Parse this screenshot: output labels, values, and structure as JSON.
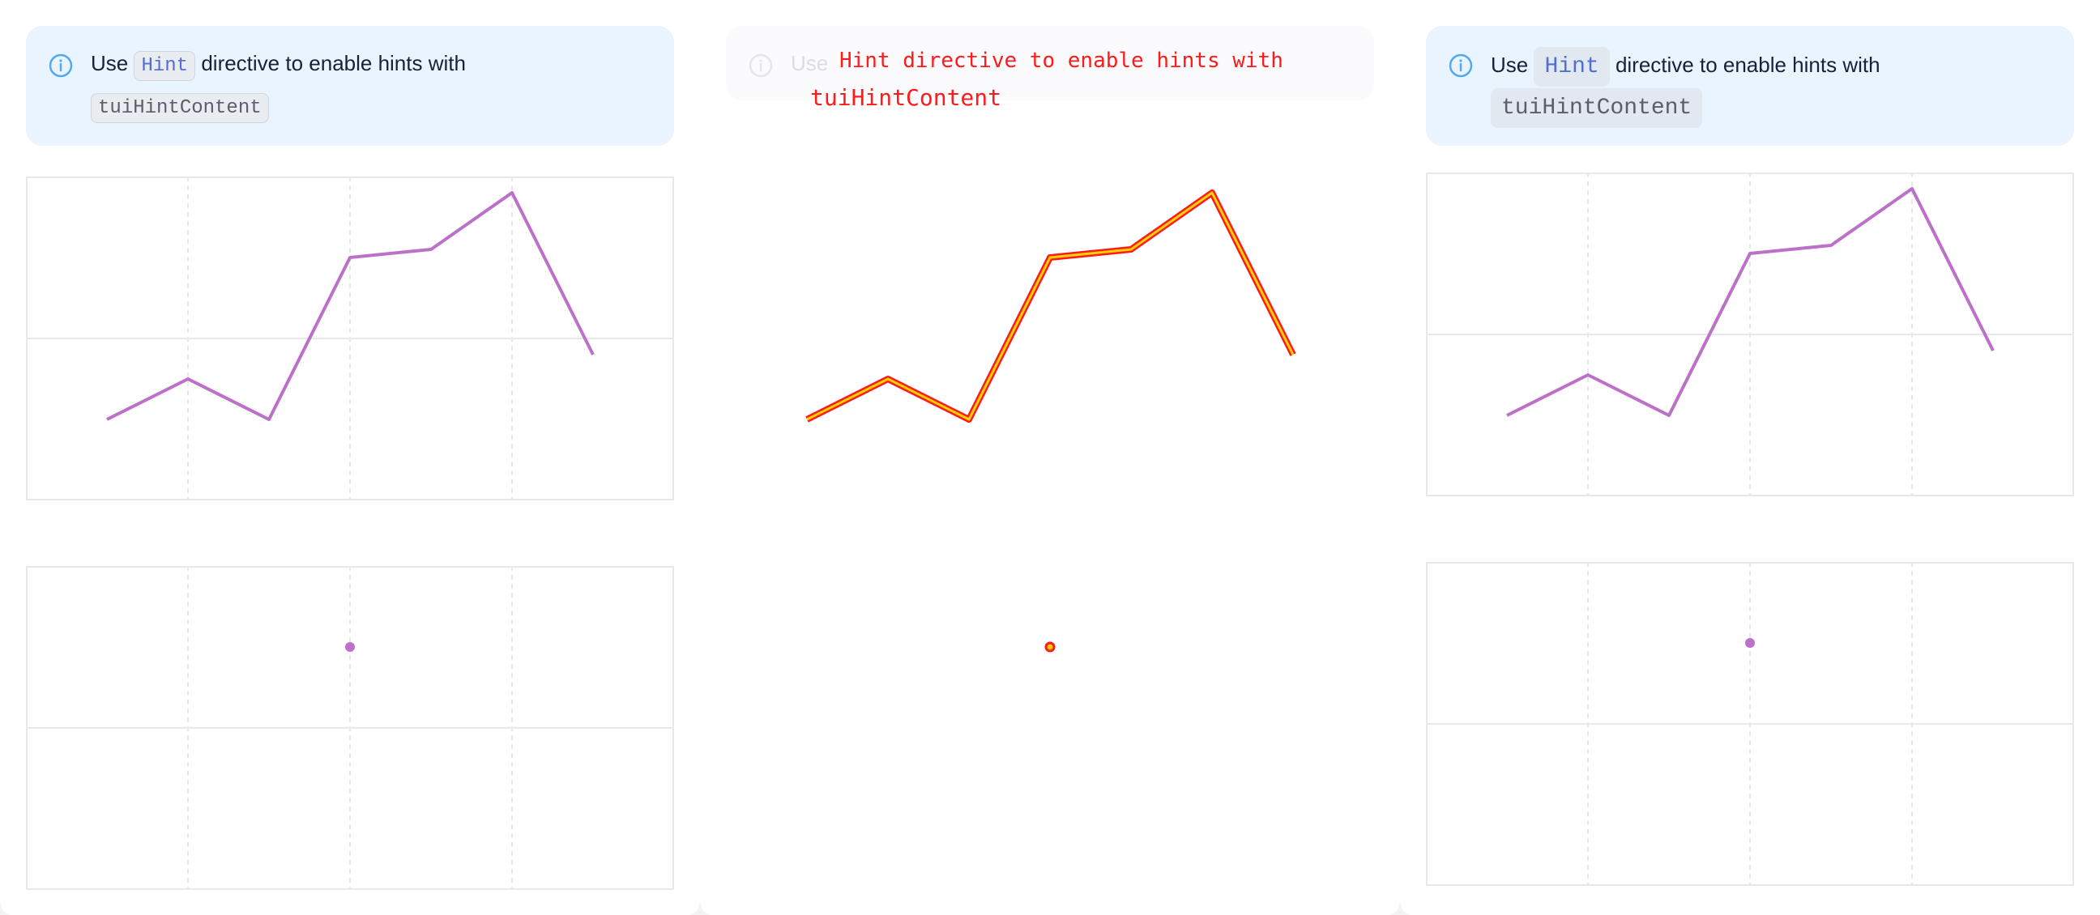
{
  "notice": {
    "prefix": "Use",
    "hint_code": "Hint",
    "middle": "directive to enable hints with",
    "content_code": "tuiHintContent"
  },
  "overlay": {
    "line1": "Hint directive to enable hints with",
    "line2": "tuiHintContent"
  },
  "chart_data": [
    {
      "type": "line",
      "x": [
        0.5,
        1,
        1.5,
        2,
        2.5,
        3,
        3.5
      ],
      "values": [
        50,
        75,
        50,
        150,
        155,
        190,
        90
      ],
      "xlim": [
        0,
        4
      ],
      "ylim": [
        0,
        200
      ],
      "grid": true,
      "color": "#bc71c9"
    },
    {
      "type": "scatter",
      "x": [
        2
      ],
      "values": [
        150
      ],
      "xlim": [
        0,
        4
      ],
      "ylim": [
        0,
        200
      ],
      "grid": true,
      "color": "#bc71c9"
    }
  ],
  "colors": {
    "line": "#bc71c9",
    "grid": "#e6e8ec",
    "info_icon": "#52a8f2",
    "overlay_red": "#ff1b1b",
    "overlay_yellow": "#ffd200"
  }
}
